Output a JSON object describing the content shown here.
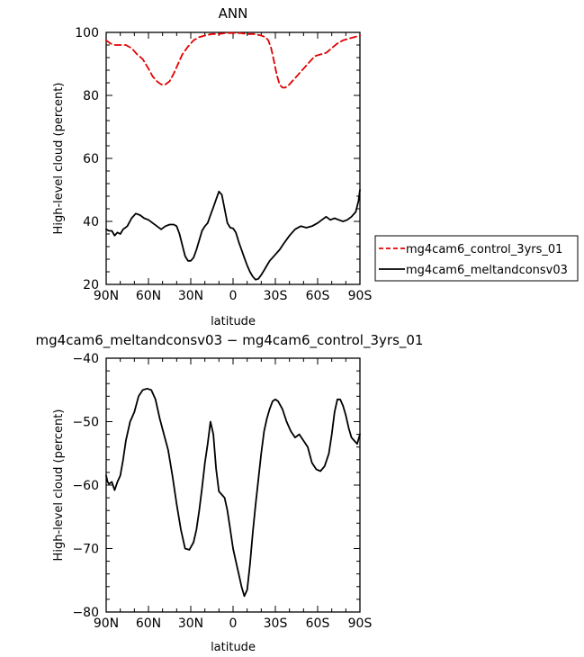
{
  "chart_data": [
    {
      "type": "line",
      "title": "ANN",
      "xlabel": "latitude",
      "ylabel": "High-level cloud (percent)",
      "xlim": [
        90,
        -90
      ],
      "ylim": [
        20,
        100
      ],
      "x_ticks": [
        90,
        60,
        30,
        0,
        -30,
        -60,
        -90
      ],
      "x_tick_labels": [
        "90N",
        "60N",
        "30N",
        "0",
        "30S",
        "60S",
        "90S"
      ],
      "y_ticks": [
        20,
        40,
        60,
        80,
        100
      ],
      "y_tick_labels": [
        "20",
        "40",
        "60",
        "80",
        "100"
      ],
      "legend_position": "right",
      "series": [
        {
          "name": "mg4cam6_control_3yrs_01",
          "color": "#e00000",
          "dash": "dashed",
          "x": [
            90,
            87,
            84,
            80,
            76,
            72,
            68,
            64,
            60,
            57,
            54,
            51,
            48,
            45,
            42,
            39,
            36,
            32,
            28,
            24,
            20,
            15,
            10,
            5,
            0,
            -5,
            -10,
            -15,
            -20,
            -23,
            -25,
            -27,
            -29,
            -31,
            -33,
            -35,
            -37,
            -39,
            -41,
            -43,
            -46,
            -50,
            -54,
            -58,
            -62,
            -66,
            -70,
            -74,
            -78,
            -82,
            -86,
            -90
          ],
          "y": [
            97.5,
            96.5,
            96,
            96,
            96,
            95,
            93,
            91.5,
            88.5,
            86,
            84.5,
            83.5,
            83.5,
            84.5,
            87,
            90,
            93,
            95.5,
            97.5,
            98.5,
            99,
            99.5,
            99.5,
            99.8,
            99.8,
            99.8,
            99.5,
            99.5,
            99,
            98.5,
            97.5,
            95,
            91,
            86.5,
            83.5,
            82.5,
            82.5,
            83,
            84,
            85,
            86.5,
            88.5,
            90.5,
            92.5,
            93,
            93.5,
            95,
            96.5,
            97.5,
            98,
            98.5,
            99
          ]
        },
        {
          "name": "mg4cam6_meltandconsv03",
          "color": "#000000",
          "dash": "solid",
          "x": [
            90,
            88,
            86,
            84,
            82,
            80,
            78,
            75,
            72,
            69,
            66,
            63,
            60,
            57,
            54,
            51,
            48,
            45,
            42,
            40,
            38,
            36,
            34,
            32,
            30,
            28,
            26,
            24,
            22,
            20,
            18,
            16,
            14,
            12,
            10,
            8,
            6,
            4,
            2,
            0,
            -2,
            -4,
            -6,
            -8,
            -10,
            -12,
            -14,
            -16,
            -18,
            -20,
            -22,
            -24,
            -26,
            -28,
            -30,
            -33,
            -36,
            -40,
            -44,
            -48,
            -52,
            -56,
            -60,
            -63,
            -66,
            -69,
            -72,
            -75,
            -78,
            -81,
            -84,
            -87,
            -89,
            -90
          ],
          "y": [
            37.5,
            37,
            37,
            35.5,
            36.5,
            36,
            37.5,
            38.5,
            41,
            42.5,
            42,
            41,
            40.5,
            39.5,
            38.5,
            37.5,
            38.5,
            39,
            39,
            38.5,
            36,
            32.5,
            29,
            27.5,
            27.5,
            28.5,
            31,
            34,
            37,
            38.5,
            39.5,
            42,
            44.5,
            47,
            49.5,
            48.5,
            44,
            39.5,
            38,
            37.8,
            36.5,
            33.5,
            31,
            28.5,
            26,
            24,
            22.5,
            21.5,
            21.8,
            23,
            24.5,
            26,
            27.5,
            28.5,
            29.5,
            31,
            33,
            35.5,
            37.5,
            38.5,
            38,
            38.5,
            39.5,
            40.5,
            41.5,
            40.5,
            41,
            40.5,
            40,
            40.5,
            41.5,
            43,
            46.5,
            50
          ]
        }
      ]
    },
    {
      "type": "line",
      "title": "mg4cam6_meltandconsv03 − mg4cam6_control_3yrs_01",
      "xlabel": "latitude",
      "ylabel": "High-level cloud (percent)",
      "xlim": [
        90,
        -90
      ],
      "ylim": [
        -80,
        -40
      ],
      "x_ticks": [
        90,
        60,
        30,
        0,
        -30,
        -60,
        -90
      ],
      "x_tick_labels": [
        "90N",
        "60N",
        "30N",
        "0",
        "30S",
        "60S",
        "90S"
      ],
      "y_ticks": [
        -80,
        -70,
        -60,
        -50,
        -40
      ],
      "y_tick_labels": [
        "−80",
        "−70",
        "−60",
        "−50",
        "−40"
      ],
      "series": [
        {
          "color": "#000000",
          "dash": "solid",
          "x": [
            90,
            89,
            88,
            86,
            84,
            82,
            80,
            78,
            76,
            73,
            70,
            67,
            64,
            61,
            58,
            55,
            52,
            49,
            46,
            43,
            40,
            37,
            34,
            31,
            28,
            26,
            24,
            22,
            20,
            18,
            16,
            14,
            12,
            10,
            8,
            6,
            4,
            2,
            0,
            -2,
            -4,
            -6,
            -8,
            -10,
            -12,
            -14,
            -16,
            -18,
            -20,
            -22,
            -24,
            -26,
            -28,
            -30,
            -32,
            -35,
            -38,
            -41,
            -44,
            -47,
            -50,
            -53,
            -56,
            -59,
            -62,
            -65,
            -68,
            -70,
            -72,
            -74,
            -76,
            -78,
            -80,
            -82,
            -84,
            -86,
            -88,
            -90
          ],
          "y": [
            -58.5,
            -59.5,
            -59.8,
            -59.5,
            -60.8,
            -59.5,
            -58.5,
            -56,
            -53,
            -50,
            -48.5,
            -46,
            -45,
            -44.8,
            -45,
            -46.5,
            -49.5,
            -52,
            -54.5,
            -58.5,
            -63,
            -67,
            -70,
            -70.2,
            -69,
            -67,
            -64,
            -60.5,
            -56.5,
            -53.5,
            -50,
            -52,
            -57.5,
            -61,
            -61.5,
            -62,
            -64,
            -67,
            -70,
            -72,
            -74,
            -76,
            -77.5,
            -76.5,
            -72.5,
            -67.5,
            -63,
            -59,
            -55,
            -51.5,
            -49.5,
            -48,
            -46.8,
            -46.5,
            -46.8,
            -48,
            -50,
            -51.5,
            -52.5,
            -52,
            -53,
            -54,
            -56.5,
            -57.5,
            -57.8,
            -57,
            -55,
            -52,
            -48.5,
            -46.5,
            -46.5,
            -47.5,
            -49,
            -51,
            -52.5,
            -53,
            -53.5,
            -52
          ]
        }
      ]
    }
  ]
}
